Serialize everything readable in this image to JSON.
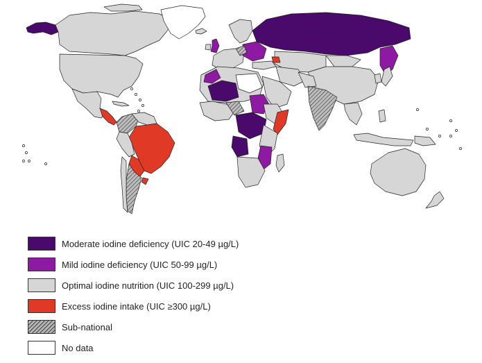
{
  "legend": {
    "items": [
      {
        "key": "moderate",
        "label": "Moderate iodine deficiency (UIC 20-49 µg/L)",
        "color": "#4a0a6b"
      },
      {
        "key": "mild",
        "label": "Mild iodine deficiency (UIC 50-99 µg/L)",
        "color": "#8e1aa3"
      },
      {
        "key": "optimal",
        "label": "Optimal iodine nutrition (UIC 100-299 µg/L)",
        "color": "#d6d6d6"
      },
      {
        "key": "excess",
        "label": "Excess iodine intake (UIC ≥300 µg/L)",
        "color": "#e03a26"
      },
      {
        "key": "subnational",
        "label": "Sub-national",
        "color": "#b5b5b5"
      },
      {
        "key": "nodata",
        "label": "No data",
        "color": "#ffffff"
      }
    ]
  },
  "map": {
    "ocean_color": "#ffffff",
    "border_color": "#222222"
  }
}
